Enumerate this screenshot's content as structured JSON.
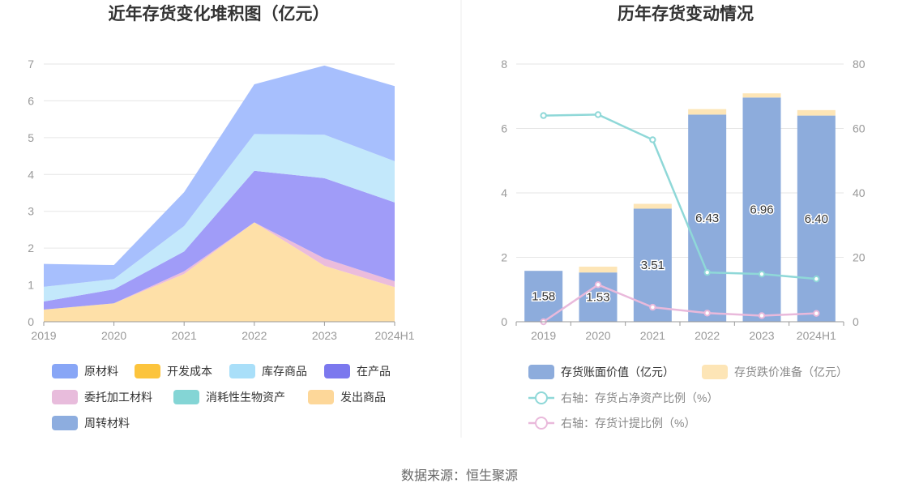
{
  "source": "数据来源：恒生聚源",
  "chart_data": [
    {
      "type": "area",
      "stacked": true,
      "title": "近年存货变化堆积图（亿元）",
      "categories": [
        "2019",
        "2020",
        "2021",
        "2022",
        "2023",
        "2024H1"
      ],
      "ylim": [
        0,
        7
      ],
      "yticks": [
        0,
        1,
        2,
        3,
        4,
        5,
        6,
        7
      ],
      "grid": true,
      "legend_position": "bottom",
      "series": [
        {
          "name": "发出商品",
          "color": "#fee0a8",
          "values": [
            0.33,
            0.5,
            1.3,
            2.7,
            1.52,
            0.94
          ]
        },
        {
          "name": "委托加工材料",
          "color": "#ebbcdc",
          "values": [
            0.0,
            0.0,
            0.07,
            0.0,
            0.2,
            0.16
          ]
        },
        {
          "name": "在产品",
          "color": "#a09cf8",
          "values": [
            0.22,
            0.38,
            0.54,
            1.4,
            2.18,
            2.14
          ]
        },
        {
          "name": "库存商品",
          "color": "#c3e8fb",
          "values": [
            0.4,
            0.28,
            0.69,
            1.0,
            1.18,
            1.12
          ]
        },
        {
          "name": "原材料",
          "color": "#a7bffd",
          "values": [
            0.62,
            0.38,
            0.92,
            1.35,
            1.88,
            2.04
          ]
        },
        {
          "name": "开发成本",
          "color": "#fcc43d",
          "values": [
            0,
            0,
            0,
            0,
            0,
            0
          ]
        },
        {
          "name": "消耗性生物资产",
          "color": "#84d5d5",
          "values": [
            0,
            0,
            0,
            0,
            0,
            0
          ]
        },
        {
          "name": "周转材料",
          "color": "#8daddf",
          "values": [
            0,
            0,
            0,
            0,
            0,
            0
          ]
        }
      ],
      "legend": [
        {
          "name": "原材料",
          "color": "#88a6f6"
        },
        {
          "name": "开发成本",
          "color": "#fcc43d"
        },
        {
          "name": "库存商品",
          "color": "#a9dff9"
        },
        {
          "name": "在产品",
          "color": "#7b78ee"
        },
        {
          "name": "委托加工材料",
          "color": "#e8bcdc"
        },
        {
          "name": "消耗性生物资产",
          "color": "#84d5d5"
        },
        {
          "name": "发出商品",
          "color": "#fdd799"
        },
        {
          "name": "周转材料",
          "color": "#8daddf"
        }
      ]
    },
    {
      "type": "bar",
      "stacked": true,
      "title": "历年存货变动情况",
      "categories": [
        "2019",
        "2020",
        "2021",
        "2022",
        "2023",
        "2024H1"
      ],
      "ylim": [
        0,
        8
      ],
      "yticks": [
        0,
        2,
        4,
        6,
        8
      ],
      "y2lim": [
        0,
        80
      ],
      "y2ticks": [
        0,
        20,
        40,
        60,
        80
      ],
      "grid": true,
      "legend_position": "bottom",
      "series": [
        {
          "name": "存货账面价值（亿元）",
          "color": "#8dacdc",
          "values": [
            1.58,
            1.53,
            3.51,
            6.43,
            6.96,
            6.4
          ],
          "labels": [
            "1.58",
            "1.53",
            "3.51",
            "6.43",
            "6.96",
            "6.40"
          ]
        },
        {
          "name": "存货跌价准备（亿元）",
          "color": "#fde5b6",
          "values": [
            0.0,
            0.18,
            0.15,
            0.17,
            0.13,
            0.17
          ]
        }
      ],
      "line_series": [
        {
          "name": "右轴：存货占净资产比例（%）",
          "color": "#8fd8d8",
          "axis": "right",
          "values": [
            64.0,
            64.3,
            56.5,
            15.3,
            14.8,
            13.3
          ]
        },
        {
          "name": "右轴：存货计提比例（%）",
          "color": "#e9b9db",
          "axis": "right",
          "values": [
            0.0,
            11.5,
            4.5,
            2.7,
            1.9,
            2.6
          ]
        }
      ]
    }
  ]
}
